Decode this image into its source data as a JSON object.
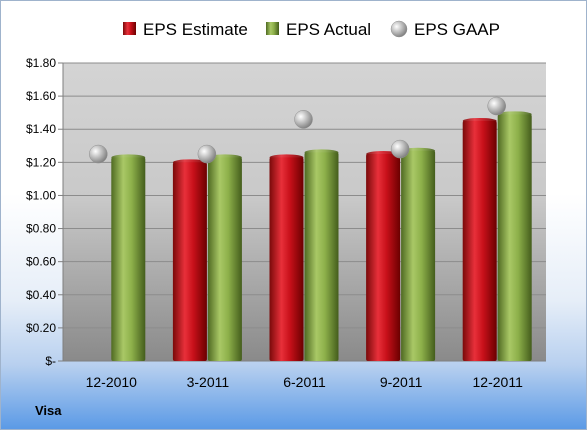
{
  "chart_data": {
    "type": "bar",
    "categories": [
      "12-2010",
      "3-2011",
      "6-2011",
      "9-2011",
      "12-2011"
    ],
    "series": [
      {
        "name": "EPS Estimate",
        "kind": "bar",
        "color": "#c8101a",
        "values": [
          null,
          1.2,
          1.23,
          1.25,
          1.45
        ]
      },
      {
        "name": "EPS Actual",
        "kind": "bar",
        "color": "#8db04a",
        "values": [
          1.23,
          1.23,
          1.26,
          1.27,
          1.49
        ]
      },
      {
        "name": "EPS GAAP",
        "kind": "marker",
        "color": "#b0b0b0",
        "values": [
          1.25,
          1.25,
          1.46,
          1.28,
          1.54
        ]
      }
    ],
    "y_ticks": [
      "$-",
      "$0.20",
      "$0.40",
      "$0.60",
      "$0.80",
      "$1.00",
      "$1.20",
      "$1.40",
      "$1.60",
      "$1.80"
    ],
    "ylim": [
      0,
      1.8
    ],
    "grid": true,
    "legend_position": "top",
    "title": "",
    "xlabel": "",
    "ylabel": ""
  },
  "company": "Visa"
}
